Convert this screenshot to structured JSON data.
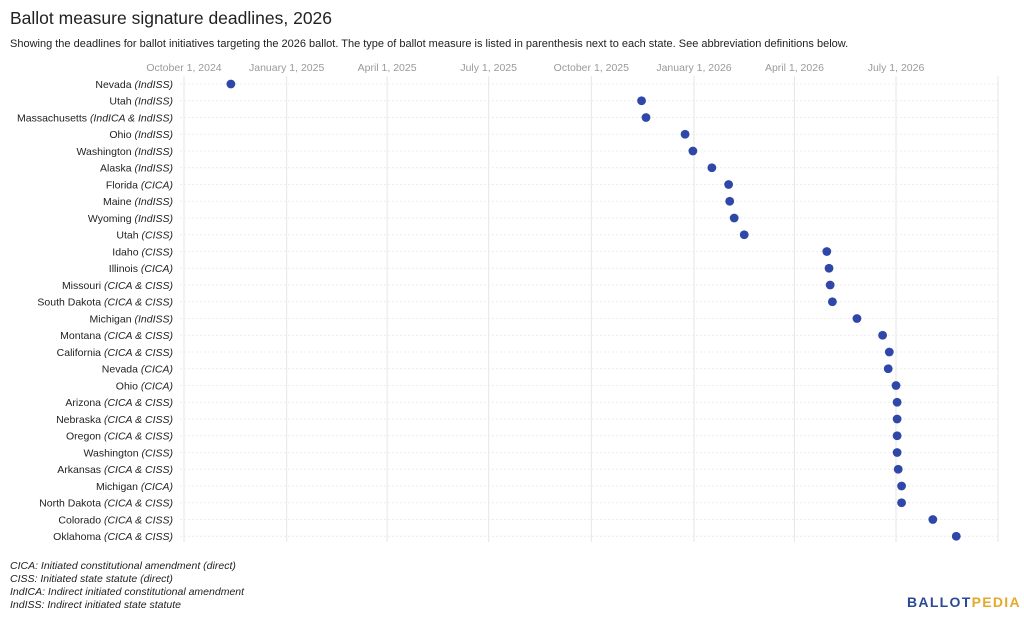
{
  "title": "Ballot measure signature deadlines, 2026",
  "subtitle": "Showing the deadlines for ballot initiatives targeting the 2026 ballot. The type of ballot measure is listed in parenthesis next to each state. See abbreviation definitions below.",
  "legend": [
    "CICA: Initiated constitutional amendment (direct)",
    "CISS: Initiated state statute (direct)",
    "IndICA: Indirect initiated constitutional amendment",
    "IndISS: Indirect initiated state statute"
  ],
  "logo": {
    "part1": "BALLOT",
    "part2": "PEDIA"
  },
  "colors": {
    "point": "#2f47a8",
    "grid": "#e6e6e6",
    "tick_text": "#9a9a9a"
  },
  "chart_data": {
    "type": "scatter",
    "title": "Ballot measure signature deadlines, 2026",
    "x_type": "date",
    "x_ticks": [
      "2024-10-01",
      "2025-01-01",
      "2025-04-01",
      "2025-07-01",
      "2025-10-01",
      "2026-01-01",
      "2026-04-01",
      "2026-07-01"
    ],
    "x_tick_labels": [
      "October 1, 2024",
      "January 1, 2025",
      "April 1, 2025",
      "July 1, 2025",
      "October 1, 2025",
      "January 1, 2026",
      "April 1, 2026",
      "July 1, 2026"
    ],
    "xlim": [
      "2024-09-01",
      "2026-10-01"
    ],
    "grid": true,
    "points": [
      {
        "state": "Nevada",
        "type": "IndISS",
        "date": "2024-11-12"
      },
      {
        "state": "Utah",
        "type": "IndISS",
        "date": "2025-11-15"
      },
      {
        "state": "Massachusetts",
        "type": "IndICA & IndISS",
        "date": "2025-11-19"
      },
      {
        "state": "Ohio",
        "type": "IndISS",
        "date": "2025-12-24"
      },
      {
        "state": "Washington",
        "type": "IndISS",
        "date": "2025-12-31"
      },
      {
        "state": "Alaska",
        "type": "IndISS",
        "date": "2026-01-17"
      },
      {
        "state": "Florida",
        "type": "CICA",
        "date": "2026-02-01"
      },
      {
        "state": "Maine",
        "type": "IndISS",
        "date": "2026-02-02"
      },
      {
        "state": "Wyoming",
        "type": "IndISS",
        "date": "2026-02-06"
      },
      {
        "state": "Utah",
        "type": "CISS",
        "date": "2026-02-15"
      },
      {
        "state": "Idaho",
        "type": "CISS",
        "date": "2026-04-30"
      },
      {
        "state": "Illinois",
        "type": "CICA",
        "date": "2026-05-02"
      },
      {
        "state": "Missouri",
        "type": "CICA & CISS",
        "date": "2026-05-03"
      },
      {
        "state": "South Dakota",
        "type": "CICA & CISS",
        "date": "2026-05-05"
      },
      {
        "state": "Michigan",
        "type": "IndISS",
        "date": "2026-05-27"
      },
      {
        "state": "Montana",
        "type": "CICA & CISS",
        "date": "2026-06-19"
      },
      {
        "state": "California",
        "type": "CICA & CISS",
        "date": "2026-06-25"
      },
      {
        "state": "Nevada",
        "type": "CICA",
        "date": "2026-06-24"
      },
      {
        "state": "Ohio",
        "type": "CICA",
        "date": "2026-07-01"
      },
      {
        "state": "Arizona",
        "type": "CICA & CISS",
        "date": "2026-07-02"
      },
      {
        "state": "Nebraska",
        "type": "CICA & CISS",
        "date": "2026-07-02"
      },
      {
        "state": "Oregon",
        "type": "CICA & CISS",
        "date": "2026-07-02"
      },
      {
        "state": "Washington",
        "type": "CISS",
        "date": "2026-07-02"
      },
      {
        "state": "Arkansas",
        "type": "CICA & CISS",
        "date": "2026-07-03"
      },
      {
        "state": "Michigan",
        "type": "CICA",
        "date": "2026-07-06"
      },
      {
        "state": "North Dakota",
        "type": "CICA & CISS",
        "date": "2026-07-06"
      },
      {
        "state": "Colorado",
        "type": "CICA & CISS",
        "date": "2026-08-03"
      },
      {
        "state": "Oklahoma",
        "type": "CICA & CISS",
        "date": "2026-08-24"
      }
    ]
  }
}
